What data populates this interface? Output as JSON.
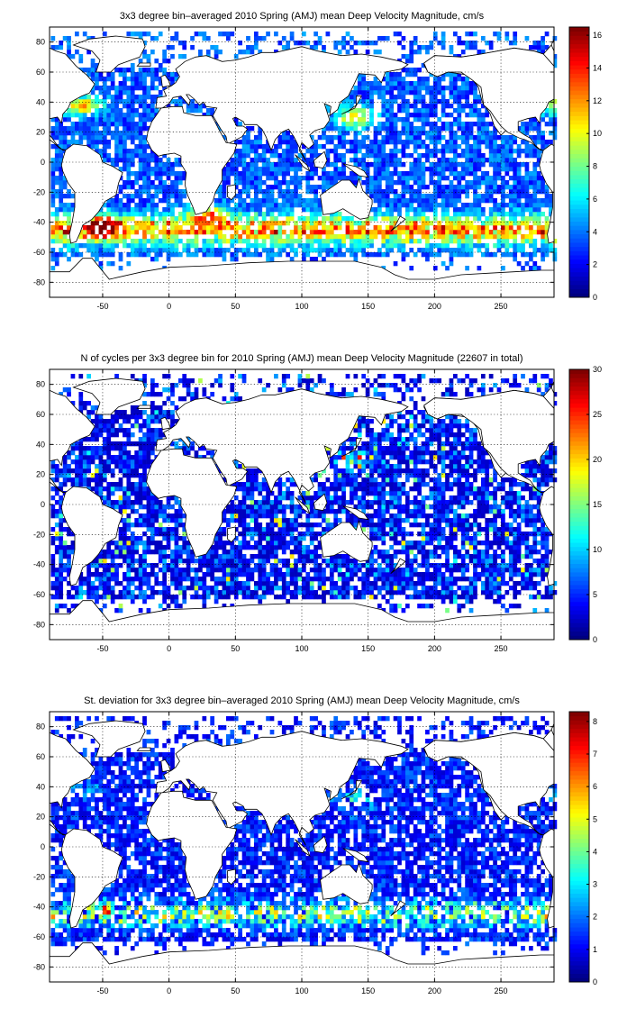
{
  "colormap": "jet",
  "chart_data": [
    {
      "type": "heatmap",
      "title": "3x3 degree bin–averaged 2010 Spring (AMJ) mean Deep Velocity Magnitude, cm/s",
      "xlim": [
        -90,
        290
      ],
      "ylim": [
        -90,
        90
      ],
      "xticks": [
        -50,
        0,
        50,
        100,
        150,
        200,
        250
      ],
      "yticks": [
        80,
        60,
        40,
        20,
        0,
        -20,
        -40,
        -60,
        -80
      ],
      "grid": true,
      "bin_size_deg": 3,
      "colorbar": {
        "min": 0,
        "max": 16.5,
        "ticks": [
          0,
          2,
          4,
          6,
          8,
          10,
          12,
          14,
          16
        ]
      },
      "value_pattern": "high values (10–16) along the Antarctic Circumpolar Current (about -35 to -60 lat), Gulf Stream, Kuroshio and Agulhas; low values (1–4) in the open ocean interiors"
    },
    {
      "type": "heatmap",
      "title": "N of cycles per 3x3 degree bin for 2010 Spring (AMJ) mean Deep Velocity Magnitude (22607 in total)",
      "xlim": [
        -90,
        290
      ],
      "ylim": [
        -90,
        90
      ],
      "xticks": [
        -50,
        0,
        50,
        100,
        150,
        200,
        250
      ],
      "yticks": [
        80,
        60,
        40,
        20,
        0,
        -20,
        -40,
        -60,
        -80
      ],
      "grid": true,
      "bin_size_deg": 3,
      "colorbar": {
        "min": 0,
        "max": 30,
        "ticks": [
          0,
          5,
          10,
          15,
          20,
          25,
          30
        ]
      },
      "value_pattern": "mostly low counts (1–8) everywhere with scattered high counts (20–30), notably in the northwest Pacific near Japan"
    },
    {
      "type": "heatmap",
      "title": "St. deviation for 3x3 degree bin–averaged 2010 Spring (AMJ) mean Deep Velocity Magnitude, cm/s",
      "xlim": [
        -90,
        290
      ],
      "ylim": [
        -90,
        90
      ],
      "xticks": [
        -50,
        0,
        50,
        100,
        150,
        200,
        250
      ],
      "yticks": [
        80,
        60,
        40,
        20,
        0,
        -20,
        -40,
        -60,
        -80
      ],
      "grid": true,
      "bin_size_deg": 3,
      "colorbar": {
        "min": 0,
        "max": 8.3,
        "ticks": [
          0,
          1,
          2,
          3,
          4,
          5,
          6,
          7,
          8
        ]
      },
      "value_pattern": "mostly low values (0.5–2) with higher values (5–8) along the Southern Ocean band near -40 to -55 lat and in western boundary currents"
    }
  ]
}
